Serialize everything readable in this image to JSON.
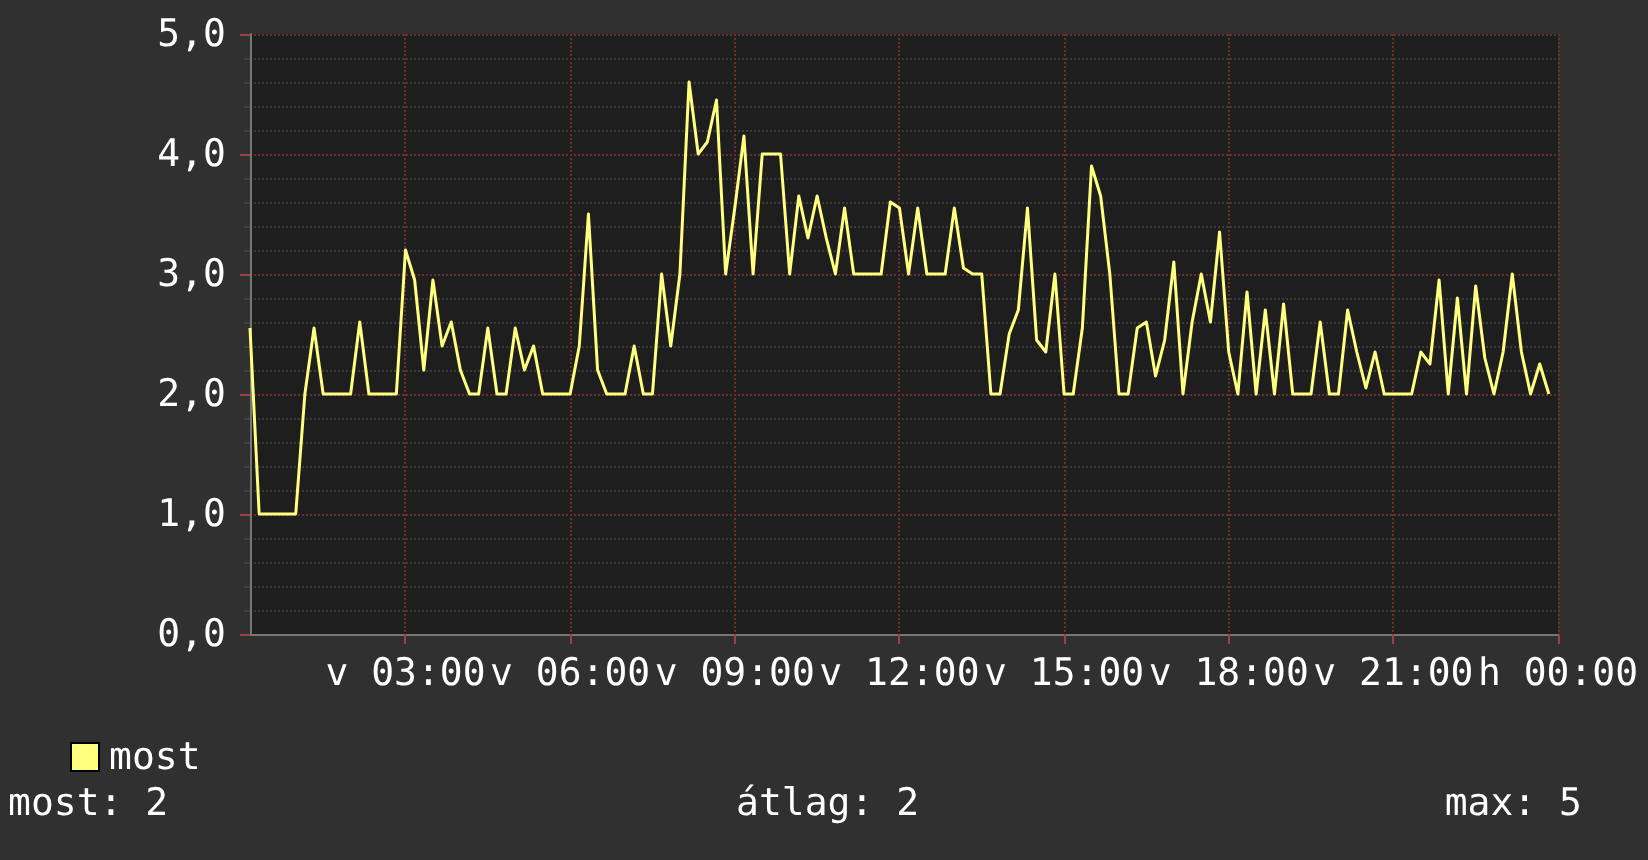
{
  "chart_data": {
    "type": "line",
    "legend": "bottom left",
    "grid": true,
    "marker": "none",
    "line_style": "solid",
    "ylim": [
      0,
      5
    ],
    "yticks": [
      {
        "value": 0,
        "label": "0,0"
      },
      {
        "value": 1,
        "label": "1,0"
      },
      {
        "value": 2,
        "label": "2,0"
      },
      {
        "value": 3,
        "label": "3,0"
      },
      {
        "value": 4,
        "label": "4,0"
      },
      {
        "value": 5,
        "label": "5,0"
      }
    ],
    "categories": [
      null,
      null,
      null,
      null,
      null,
      null,
      null,
      null,
      null,
      null,
      null,
      null,
      null,
      null,
      null,
      null,
      null,
      "v 03:00",
      null,
      null,
      null,
      null,
      null,
      null,
      null,
      null,
      null,
      null,
      null,
      null,
      null,
      null,
      null,
      null,
      null,
      "v 06:00",
      null,
      null,
      null,
      null,
      null,
      null,
      null,
      null,
      null,
      null,
      null,
      null,
      null,
      null,
      null,
      null,
      null,
      "v 09:00",
      null,
      null,
      null,
      null,
      null,
      null,
      null,
      null,
      null,
      null,
      null,
      null,
      null,
      null,
      null,
      null,
      null,
      "v 12:00",
      null,
      null,
      null,
      null,
      null,
      null,
      null,
      null,
      null,
      null,
      null,
      null,
      null,
      null,
      null,
      null,
      null,
      "v 15:00",
      null,
      null,
      null,
      null,
      null,
      null,
      null,
      null,
      null,
      null,
      null,
      null,
      null,
      null,
      null,
      null,
      null,
      "v 18:00",
      null,
      null,
      null,
      null,
      null,
      null,
      null,
      null,
      null,
      null,
      null,
      null,
      null,
      null,
      null,
      null,
      null,
      "v 21:00",
      null,
      null,
      null,
      null,
      null,
      null,
      null,
      null,
      null,
      null,
      null,
      null,
      null,
      null,
      null,
      null,
      null,
      "h 00:00"
    ],
    "annotations": [
      "most: 2",
      "átlag: 2",
      "max: 5"
    ],
    "series": [
      {
        "name": "most",
        "color": "#ffff80",
        "values": [
          2.55,
          1.0,
          1.0,
          1.0,
          1.0,
          1.0,
          2.0,
          2.55,
          2.0,
          2.0,
          2.0,
          2.0,
          2.6,
          2.0,
          2.0,
          2.0,
          2.0,
          3.2,
          2.95,
          2.2,
          2.95,
          2.4,
          2.6,
          2.2,
          2.0,
          2.0,
          2.55,
          2.0,
          2.0,
          2.55,
          2.2,
          2.4,
          2.0,
          2.0,
          2.0,
          2.0,
          2.4,
          3.5,
          2.2,
          2.0,
          2.0,
          2.0,
          2.4,
          2.0,
          2.0,
          3.0,
          2.4,
          3.0,
          4.6,
          4.0,
          4.1,
          4.45,
          3.0,
          3.55,
          4.15,
          3.0,
          4.0,
          4.0,
          4.0,
          3.0,
          3.65,
          3.3,
          3.65,
          3.3,
          3.0,
          3.55,
          3.0,
          3.0,
          3.0,
          3.0,
          3.6,
          3.55,
          3.0,
          3.55,
          3.0,
          3.0,
          3.0,
          3.55,
          3.05,
          3.0,
          3.0,
          2.0,
          2.0,
          2.5,
          2.7,
          3.55,
          2.45,
          2.35,
          3.0,
          2.0,
          2.0,
          2.55,
          3.9,
          3.65,
          3.0,
          2.0,
          2.0,
          2.55,
          2.6,
          2.15,
          2.45,
          3.1,
          2.0,
          2.6,
          3.0,
          2.6,
          3.35,
          2.35,
          2.0,
          2.85,
          2.0,
          2.7,
          2.0,
          2.75,
          2.0,
          2.0,
          2.0,
          2.6,
          2.0,
          2.0,
          2.7,
          2.35,
          2.05,
          2.35,
          2.0,
          2.0,
          2.0,
          2.0,
          2.35,
          2.25,
          2.95,
          2.0,
          2.8,
          2.0,
          2.9,
          2.3,
          2.0,
          2.35,
          3.0,
          2.35,
          2.0,
          2.25,
          2.0,
          null
        ]
      }
    ]
  }
}
